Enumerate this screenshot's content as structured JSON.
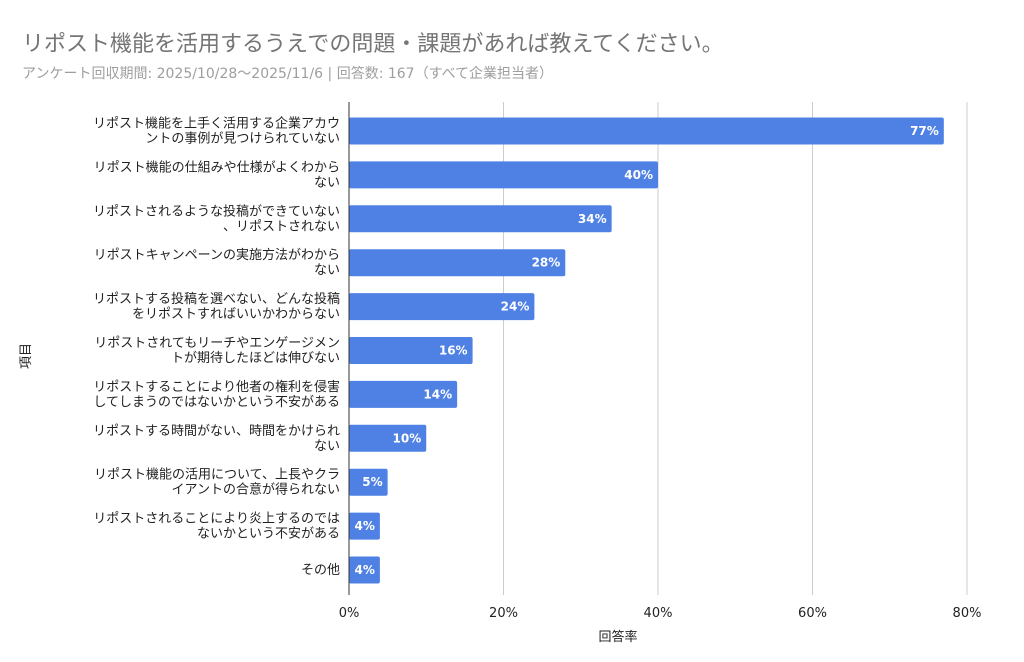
{
  "header": {
    "title": "リポスト機能を活用するうえでの問題・課題があれば教えてください。",
    "subtitle": "アンケート回収期間: 2025/10/28〜2025/11/6 | 回答数: 167（すべて企業担当者）"
  },
  "chart_data": {
    "type": "bar",
    "orientation": "horizontal",
    "xlabel": "回答率",
    "ylabel": "項目",
    "xlim": [
      0,
      80
    ],
    "xticks": [
      "0%",
      "20%",
      "40%",
      "60%",
      "80%"
    ],
    "grid": true,
    "bar_color": "#4f81e5",
    "categories": [
      [
        "リポスト機能を上手く活用する企業アカウ",
        "ントの事例が見つけられていない"
      ],
      [
        "リポスト機能の仕組みや仕様がよくわから",
        "ない"
      ],
      [
        "リポストされるような投稿ができていない",
        "、リポストされない"
      ],
      [
        "リポストキャンペーンの実施方法がわから",
        "ない"
      ],
      [
        "リポストする投稿を選べない、どんな投稿",
        "をリポストすればいいかわからない"
      ],
      [
        "リポストされてもリーチやエンゲージメン",
        "トが期待したほどは伸びない"
      ],
      [
        "リポストすることにより他者の権利を侵害",
        "してしまうのではないかという不安がある"
      ],
      [
        "リポストする時間がない、時間をかけられ",
        "ない"
      ],
      [
        "リポスト機能の活用について、上長やクラ",
        "イアントの合意が得られない"
      ],
      [
        "リポストされることにより炎上するのでは",
        "ないかという不安がある"
      ],
      [
        "その他"
      ]
    ],
    "values": [
      77,
      40,
      34,
      28,
      24,
      16,
      14,
      10,
      5,
      4,
      4
    ],
    "value_labels": [
      "77%",
      "40%",
      "34%",
      "28%",
      "24%",
      "16%",
      "14%",
      "10%",
      "5%",
      "4%",
      "4%"
    ]
  }
}
